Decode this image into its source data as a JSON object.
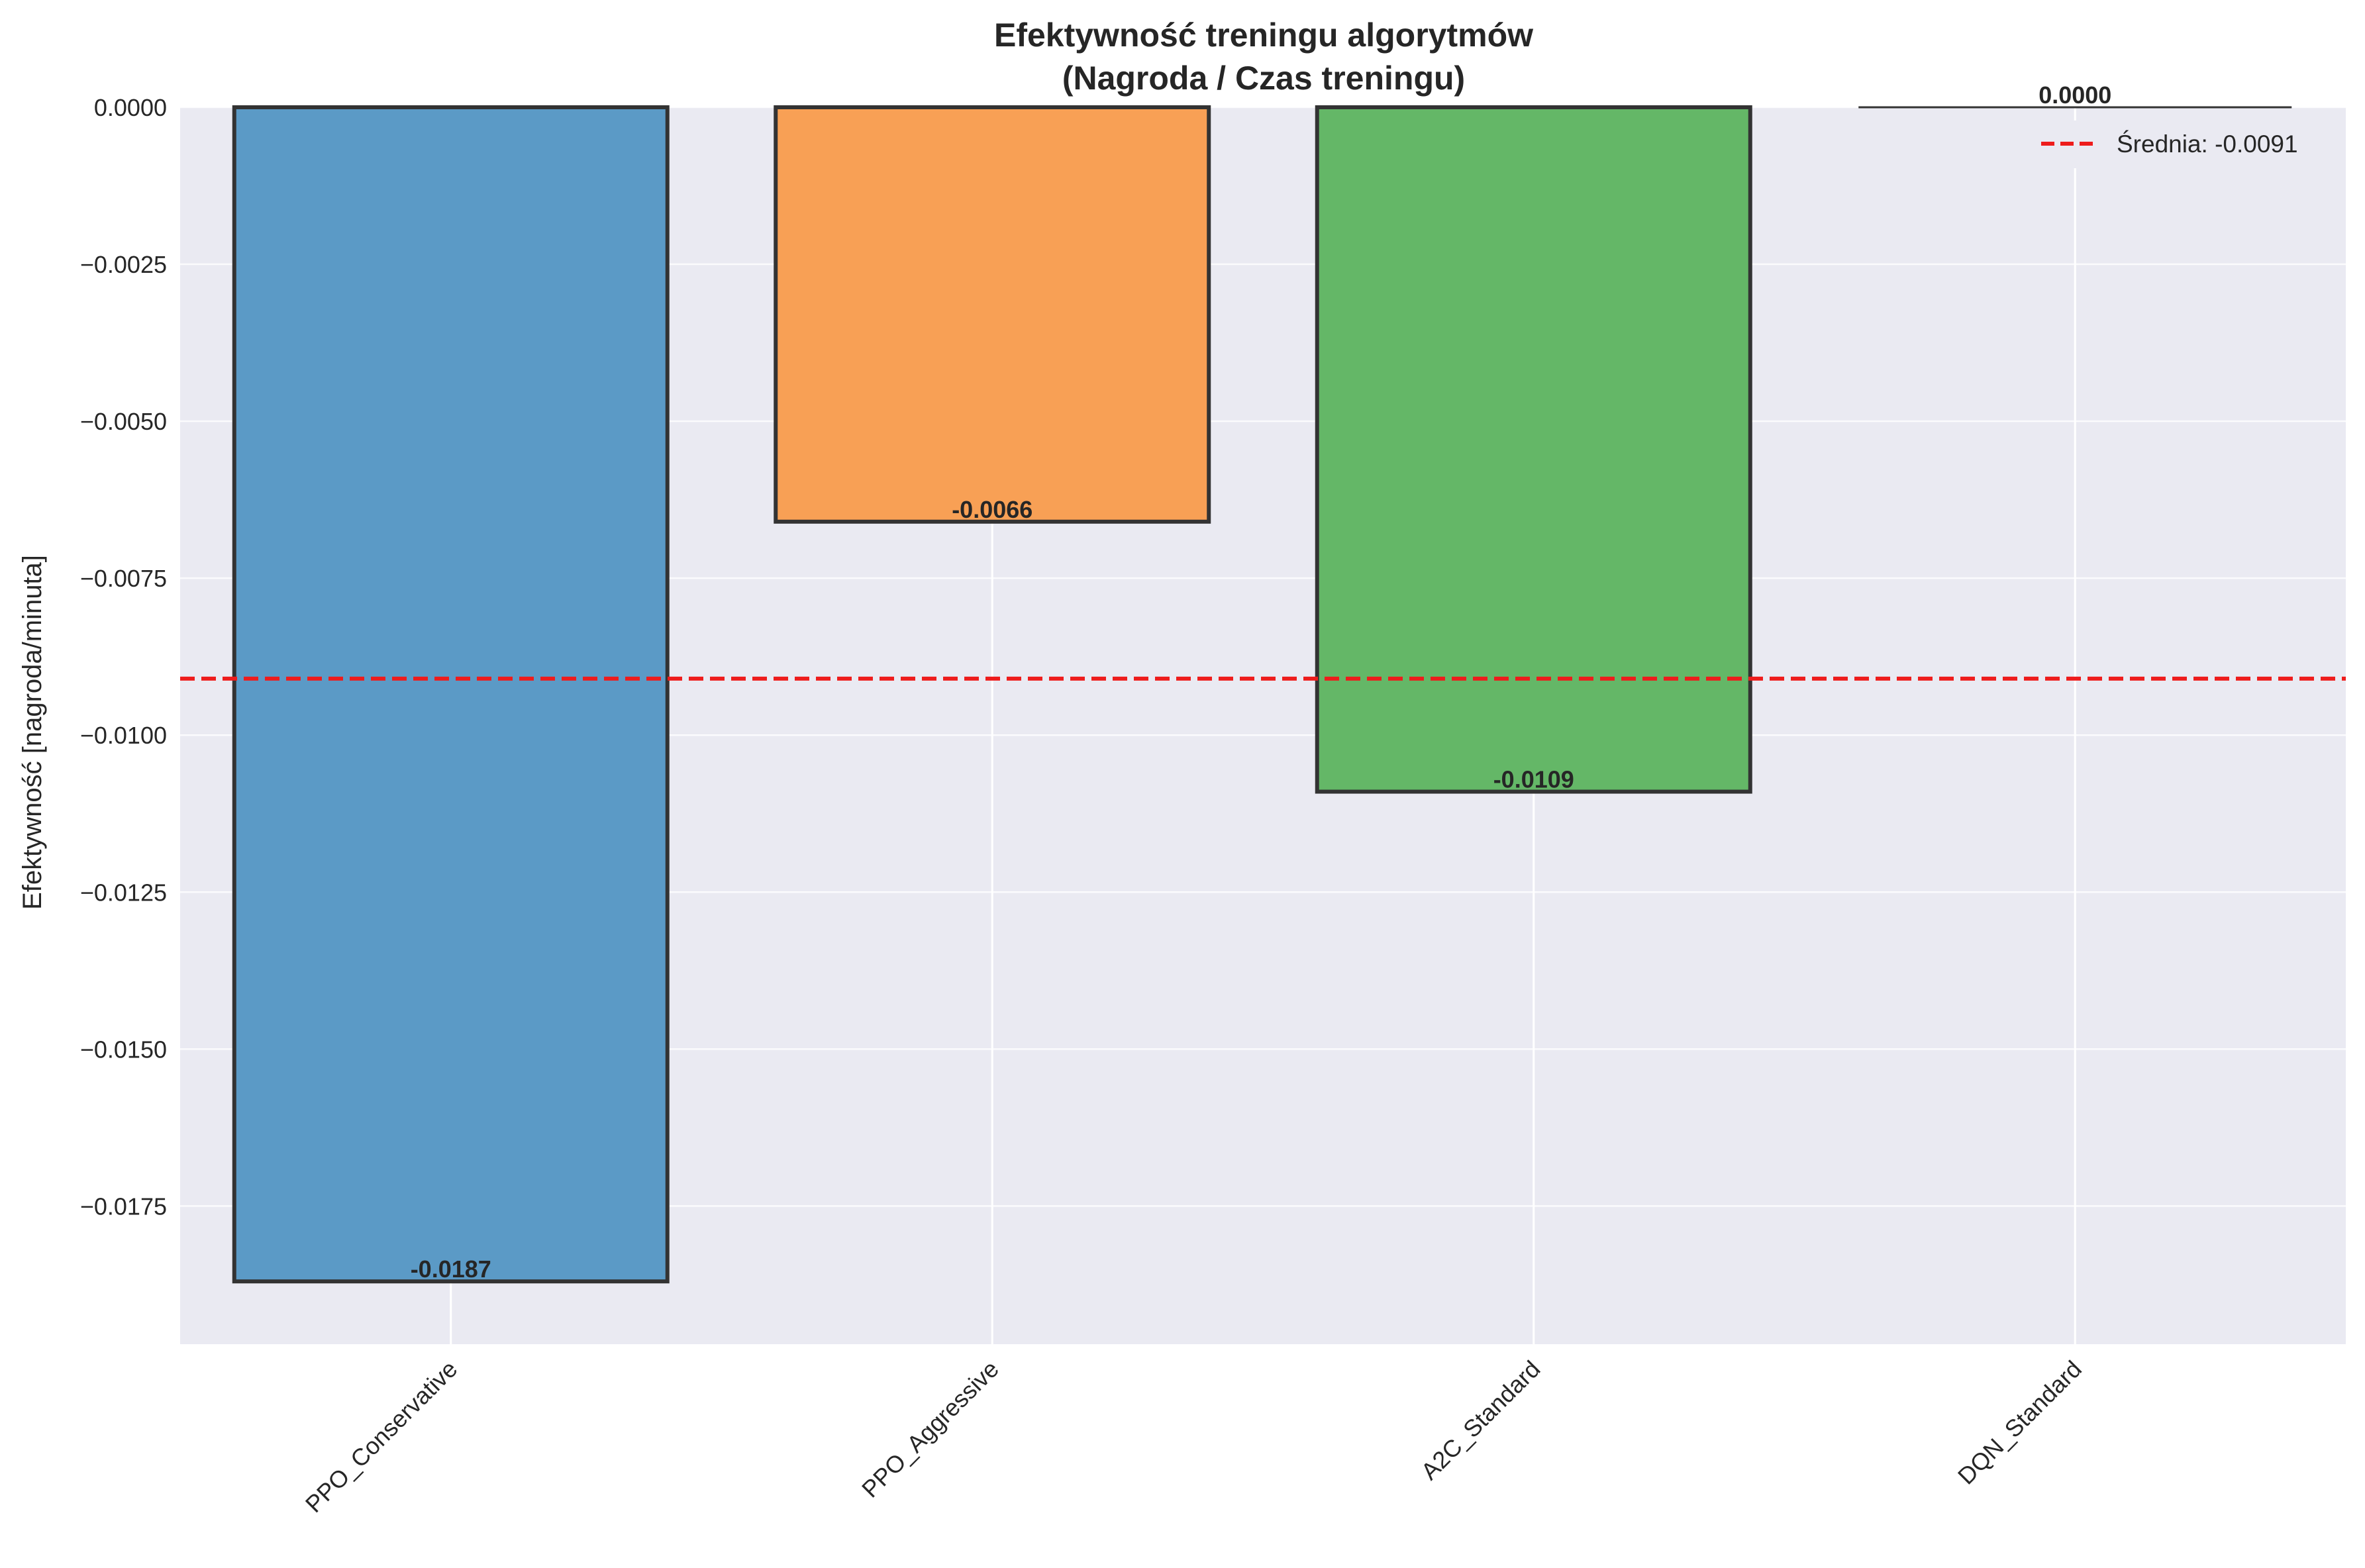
{
  "chart_data": {
    "type": "bar",
    "title_line1": "Efektywność treningu algorytmów",
    "title_line2": "(Nagroda / Czas treningu)",
    "xlabel": "",
    "ylabel": "Efektywność [nagroda/minuta]",
    "categories": [
      "PPO_Conservative",
      "PPO_Aggressive",
      "A2C_Standard",
      "DQN_Standard"
    ],
    "values": [
      -0.0187,
      -0.0066,
      -0.0109,
      0.0
    ],
    "value_labels": [
      "-0.0187",
      "-0.0066",
      "-0.0109",
      "0.0000"
    ],
    "bar_colors": [
      "#5b9ac6",
      "#f8a055",
      "#64b767",
      "#e4e4ec"
    ],
    "bar_edge_color": "#333333",
    "ylim": [
      -0.0197,
      0.0
    ],
    "yticks": [
      0.0,
      -0.0025,
      -0.005,
      -0.0075,
      -0.01,
      -0.0125,
      -0.015,
      -0.0175
    ],
    "ytick_labels": [
      "0.0000",
      "−0.0025",
      "−0.0050",
      "−0.0075",
      "−0.0100",
      "−0.0125",
      "−0.0150",
      "−0.0175"
    ],
    "mean_line": {
      "value": -0.0091,
      "label": "Średnia: -0.0091",
      "color": "#ee1c1c"
    },
    "legend_position": "top-right",
    "grid": true,
    "background_color": "#eaeaf2"
  }
}
